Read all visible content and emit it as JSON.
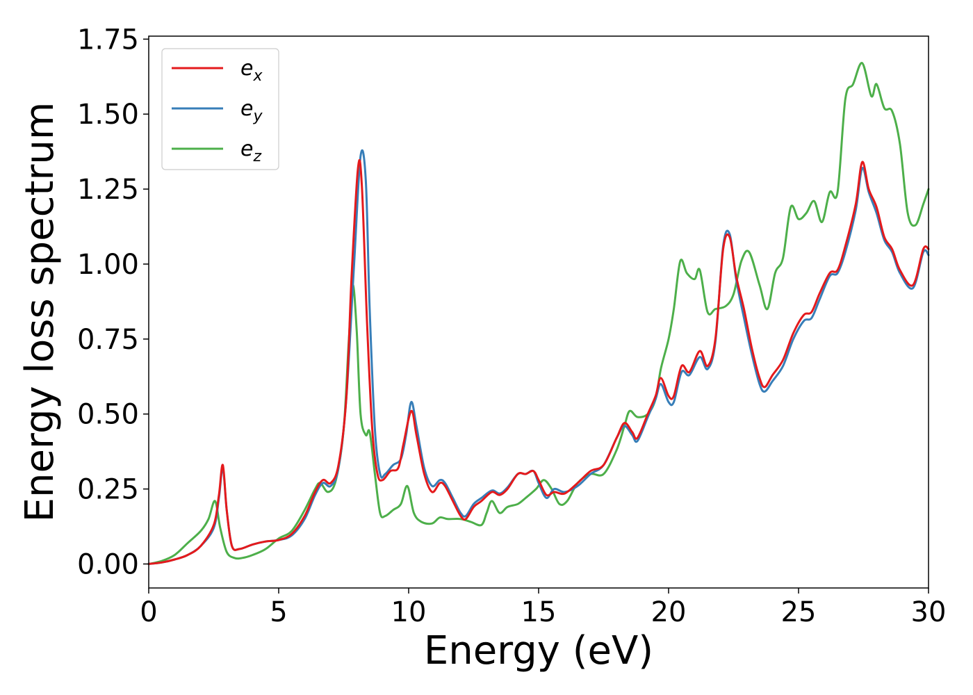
{
  "chart_data": {
    "type": "line",
    "xlabel": "Energy (eV)",
    "ylabel": "Energy loss spectrum",
    "xlim": [
      0,
      30
    ],
    "ylim": [
      -0.08,
      1.76
    ],
    "xticks": [
      "0",
      "5",
      "10",
      "15",
      "20",
      "25",
      "30"
    ],
    "yticks": [
      "0.00",
      "0.25",
      "0.50",
      "0.75",
      "1.00",
      "1.25",
      "1.50",
      "1.75"
    ],
    "grid": false,
    "legend_position": "top-left",
    "series": [
      {
        "name": "e",
        "subscript": "x",
        "color": "#e41a1c",
        "points": [
          [
            0,
            0
          ],
          [
            0.5,
            0.005
          ],
          [
            1,
            0.015
          ],
          [
            1.5,
            0.03
          ],
          [
            2,
            0.06
          ],
          [
            2.5,
            0.13
          ],
          [
            2.7,
            0.23
          ],
          [
            2.85,
            0.33
          ],
          [
            3,
            0.18
          ],
          [
            3.2,
            0.06
          ],
          [
            3.5,
            0.05
          ],
          [
            4,
            0.065
          ],
          [
            4.5,
            0.075
          ],
          [
            5,
            0.08
          ],
          [
            5.5,
            0.1
          ],
          [
            6,
            0.16
          ],
          [
            6.4,
            0.24
          ],
          [
            6.7,
            0.28
          ],
          [
            7,
            0.27
          ],
          [
            7.3,
            0.33
          ],
          [
            7.6,
            0.55
          ],
          [
            7.8,
            0.95
          ],
          [
            8.05,
            1.32
          ],
          [
            8.2,
            1.26
          ],
          [
            8.4,
            0.8
          ],
          [
            8.6,
            0.45
          ],
          [
            8.8,
            0.3
          ],
          [
            9,
            0.28
          ],
          [
            9.3,
            0.31
          ],
          [
            9.6,
            0.32
          ],
          [
            9.8,
            0.4
          ],
          [
            10.1,
            0.51
          ],
          [
            10.3,
            0.43
          ],
          [
            10.6,
            0.3
          ],
          [
            10.9,
            0.24
          ],
          [
            11.2,
            0.27
          ],
          [
            11.4,
            0.26
          ],
          [
            11.7,
            0.21
          ],
          [
            12,
            0.16
          ],
          [
            12.2,
            0.15
          ],
          [
            12.5,
            0.19
          ],
          [
            12.8,
            0.21
          ],
          [
            13.2,
            0.24
          ],
          [
            13.5,
            0.23
          ],
          [
            13.8,
            0.25
          ],
          [
            14.2,
            0.3
          ],
          [
            14.5,
            0.3
          ],
          [
            14.8,
            0.31
          ],
          [
            15,
            0.28
          ],
          [
            15.3,
            0.23
          ],
          [
            15.6,
            0.24
          ],
          [
            16,
            0.235
          ],
          [
            16.5,
            0.27
          ],
          [
            17,
            0.31
          ],
          [
            17.5,
            0.33
          ],
          [
            18,
            0.42
          ],
          [
            18.3,
            0.47
          ],
          [
            18.6,
            0.44
          ],
          [
            18.8,
            0.42
          ],
          [
            19.2,
            0.5
          ],
          [
            19.5,
            0.56
          ],
          [
            19.7,
            0.62
          ],
          [
            20,
            0.56
          ],
          [
            20.2,
            0.56
          ],
          [
            20.5,
            0.66
          ],
          [
            20.8,
            0.64
          ],
          [
            21.2,
            0.71
          ],
          [
            21.5,
            0.66
          ],
          [
            21.8,
            0.75
          ],
          [
            22.1,
            1.05
          ],
          [
            22.35,
            1.09
          ],
          [
            22.6,
            0.96
          ],
          [
            22.9,
            0.85
          ],
          [
            23.2,
            0.72
          ],
          [
            23.5,
            0.62
          ],
          [
            23.7,
            0.59
          ],
          [
            24,
            0.63
          ],
          [
            24.4,
            0.68
          ],
          [
            24.8,
            0.77
          ],
          [
            25.2,
            0.83
          ],
          [
            25.5,
            0.84
          ],
          [
            25.8,
            0.9
          ],
          [
            26.2,
            0.97
          ],
          [
            26.5,
            0.98
          ],
          [
            26.8,
            1.06
          ],
          [
            27.2,
            1.2
          ],
          [
            27.45,
            1.34
          ],
          [
            27.7,
            1.25
          ],
          [
            28,
            1.19
          ],
          [
            28.3,
            1.09
          ],
          [
            28.6,
            1.05
          ],
          [
            28.9,
            0.98
          ],
          [
            29.4,
            0.93
          ],
          [
            29.8,
            1.05
          ],
          [
            30,
            1.05
          ]
        ]
      },
      {
        "name": "e",
        "subscript": "y",
        "color": "#377eb8",
        "points": [
          [
            0,
            0
          ],
          [
            0.5,
            0.005
          ],
          [
            1,
            0.015
          ],
          [
            1.5,
            0.03
          ],
          [
            2,
            0.06
          ],
          [
            2.5,
            0.12
          ],
          [
            2.7,
            0.22
          ],
          [
            2.85,
            0.32
          ],
          [
            3,
            0.18
          ],
          [
            3.2,
            0.06
          ],
          [
            3.5,
            0.05
          ],
          [
            4,
            0.065
          ],
          [
            4.5,
            0.075
          ],
          [
            5,
            0.08
          ],
          [
            5.5,
            0.095
          ],
          [
            6,
            0.15
          ],
          [
            6.4,
            0.23
          ],
          [
            6.7,
            0.27
          ],
          [
            7,
            0.26
          ],
          [
            7.3,
            0.32
          ],
          [
            7.6,
            0.55
          ],
          [
            7.9,
            1.0
          ],
          [
            8.15,
            1.36
          ],
          [
            8.35,
            1.28
          ],
          [
            8.5,
            0.85
          ],
          [
            8.7,
            0.45
          ],
          [
            8.9,
            0.3
          ],
          [
            9.1,
            0.3
          ],
          [
            9.4,
            0.33
          ],
          [
            9.7,
            0.35
          ],
          [
            9.9,
            0.43
          ],
          [
            10.1,
            0.54
          ],
          [
            10.3,
            0.46
          ],
          [
            10.6,
            0.32
          ],
          [
            10.9,
            0.26
          ],
          [
            11.2,
            0.28
          ],
          [
            11.4,
            0.27
          ],
          [
            11.7,
            0.22
          ],
          [
            12,
            0.17
          ],
          [
            12.2,
            0.16
          ],
          [
            12.5,
            0.2
          ],
          [
            12.8,
            0.22
          ],
          [
            13.2,
            0.245
          ],
          [
            13.5,
            0.235
          ],
          [
            13.8,
            0.255
          ],
          [
            14.2,
            0.3
          ],
          [
            14.5,
            0.3
          ],
          [
            14.8,
            0.31
          ],
          [
            15,
            0.27
          ],
          [
            15.3,
            0.22
          ],
          [
            15.6,
            0.25
          ],
          [
            16,
            0.24
          ],
          [
            16.5,
            0.26
          ],
          [
            17,
            0.3
          ],
          [
            17.5,
            0.33
          ],
          [
            18,
            0.42
          ],
          [
            18.3,
            0.46
          ],
          [
            18.6,
            0.43
          ],
          [
            18.8,
            0.41
          ],
          [
            19.2,
            0.49
          ],
          [
            19.5,
            0.55
          ],
          [
            19.7,
            0.6
          ],
          [
            20,
            0.54
          ],
          [
            20.2,
            0.54
          ],
          [
            20.5,
            0.64
          ],
          [
            20.8,
            0.63
          ],
          [
            21.2,
            0.69
          ],
          [
            21.5,
            0.65
          ],
          [
            21.8,
            0.74
          ],
          [
            22.1,
            1.06
          ],
          [
            22.35,
            1.1
          ],
          [
            22.6,
            0.95
          ],
          [
            22.9,
            0.82
          ],
          [
            23.2,
            0.7
          ],
          [
            23.5,
            0.6
          ],
          [
            23.7,
            0.575
          ],
          [
            24,
            0.61
          ],
          [
            24.4,
            0.66
          ],
          [
            24.8,
            0.75
          ],
          [
            25.2,
            0.81
          ],
          [
            25.5,
            0.82
          ],
          [
            25.8,
            0.88
          ],
          [
            26.2,
            0.96
          ],
          [
            26.5,
            0.97
          ],
          [
            26.8,
            1.04
          ],
          [
            27.2,
            1.18
          ],
          [
            27.45,
            1.32
          ],
          [
            27.7,
            1.24
          ],
          [
            28,
            1.17
          ],
          [
            28.3,
            1.08
          ],
          [
            28.6,
            1.04
          ],
          [
            28.9,
            0.97
          ],
          [
            29.4,
            0.92
          ],
          [
            29.8,
            1.04
          ],
          [
            30,
            1.03
          ]
        ]
      },
      {
        "name": "e",
        "subscript": "z",
        "color": "#4daf4a",
        "points": [
          [
            0,
            0
          ],
          [
            0.5,
            0.01
          ],
          [
            1,
            0.03
          ],
          [
            1.5,
            0.07
          ],
          [
            2,
            0.11
          ],
          [
            2.3,
            0.15
          ],
          [
            2.55,
            0.21
          ],
          [
            2.75,
            0.12
          ],
          [
            3,
            0.04
          ],
          [
            3.3,
            0.02
          ],
          [
            3.6,
            0.02
          ],
          [
            4,
            0.03
          ],
          [
            4.5,
            0.05
          ],
          [
            5,
            0.085
          ],
          [
            5.5,
            0.11
          ],
          [
            6,
            0.18
          ],
          [
            6.4,
            0.25
          ],
          [
            6.6,
            0.27
          ],
          [
            6.9,
            0.24
          ],
          [
            7.2,
            0.28
          ],
          [
            7.5,
            0.45
          ],
          [
            7.7,
            0.75
          ],
          [
            7.85,
            0.93
          ],
          [
            8,
            0.78
          ],
          [
            8.15,
            0.5
          ],
          [
            8.35,
            0.43
          ],
          [
            8.5,
            0.44
          ],
          [
            8.7,
            0.3
          ],
          [
            8.9,
            0.17
          ],
          [
            9.1,
            0.16
          ],
          [
            9.4,
            0.18
          ],
          [
            9.7,
            0.2
          ],
          [
            9.95,
            0.26
          ],
          [
            10.2,
            0.17
          ],
          [
            10.5,
            0.14
          ],
          [
            10.9,
            0.135
          ],
          [
            11.2,
            0.155
          ],
          [
            11.5,
            0.15
          ],
          [
            12,
            0.15
          ],
          [
            12.4,
            0.14
          ],
          [
            12.8,
            0.13
          ],
          [
            13,
            0.17
          ],
          [
            13.2,
            0.21
          ],
          [
            13.5,
            0.17
          ],
          [
            13.8,
            0.19
          ],
          [
            14.2,
            0.2
          ],
          [
            14.5,
            0.22
          ],
          [
            14.9,
            0.25
          ],
          [
            15.2,
            0.28
          ],
          [
            15.5,
            0.25
          ],
          [
            15.8,
            0.2
          ],
          [
            16.1,
            0.21
          ],
          [
            16.5,
            0.27
          ],
          [
            17,
            0.3
          ],
          [
            17.5,
            0.3
          ],
          [
            18,
            0.38
          ],
          [
            18.3,
            0.46
          ],
          [
            18.5,
            0.51
          ],
          [
            18.8,
            0.49
          ],
          [
            19.2,
            0.5
          ],
          [
            19.5,
            0.55
          ],
          [
            19.7,
            0.65
          ],
          [
            20,
            0.75
          ],
          [
            20.2,
            0.85
          ],
          [
            20.45,
            1.01
          ],
          [
            20.7,
            0.97
          ],
          [
            21,
            0.95
          ],
          [
            21.2,
            0.98
          ],
          [
            21.5,
            0.84
          ],
          [
            21.8,
            0.85
          ],
          [
            22.2,
            0.86
          ],
          [
            22.5,
            0.9
          ],
          [
            22.8,
            1.01
          ],
          [
            23.1,
            1.04
          ],
          [
            23.5,
            0.93
          ],
          [
            23.8,
            0.85
          ],
          [
            24.1,
            0.97
          ],
          [
            24.4,
            1.02
          ],
          [
            24.7,
            1.19
          ],
          [
            25,
            1.15
          ],
          [
            25.3,
            1.17
          ],
          [
            25.6,
            1.21
          ],
          [
            25.9,
            1.14
          ],
          [
            26.2,
            1.24
          ],
          [
            26.5,
            1.24
          ],
          [
            26.8,
            1.55
          ],
          [
            27.1,
            1.6
          ],
          [
            27.45,
            1.67
          ],
          [
            27.8,
            1.56
          ],
          [
            28,
            1.6
          ],
          [
            28.3,
            1.52
          ],
          [
            28.6,
            1.51
          ],
          [
            28.9,
            1.4
          ],
          [
            29.2,
            1.17
          ],
          [
            29.5,
            1.13
          ],
          [
            29.8,
            1.2
          ],
          [
            30,
            1.25
          ]
        ]
      }
    ]
  }
}
